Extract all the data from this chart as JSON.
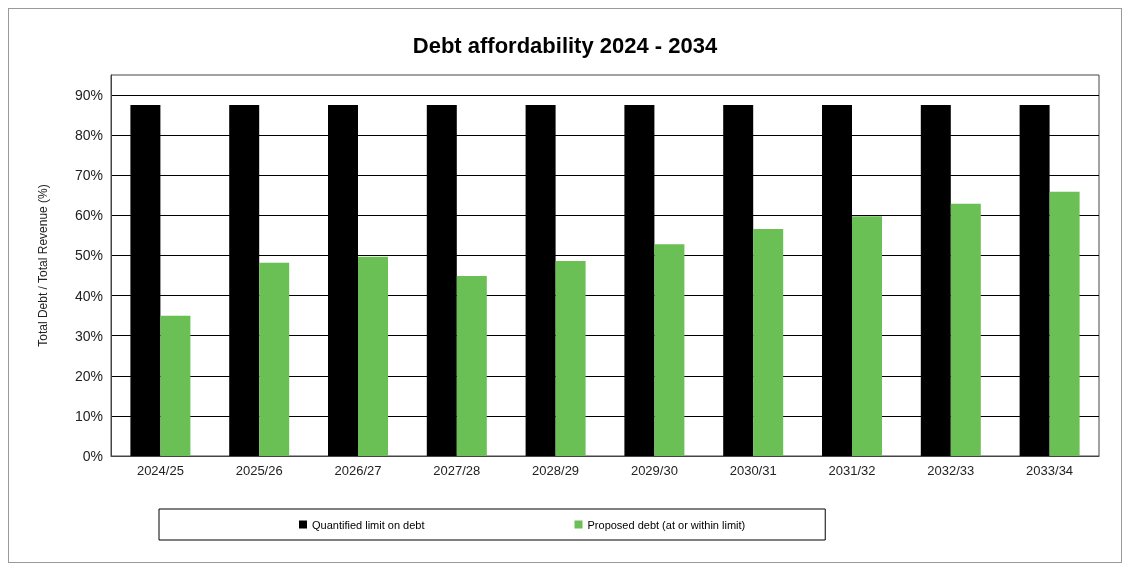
{
  "chart_data": {
    "type": "bar",
    "title": "Debt affordability 2024 - 2034",
    "ylabel": "Total Debt / Total Revenue (%)",
    "categories": [
      "2024/25",
      "2025/26",
      "2026/27",
      "2027/28",
      "2028/29",
      "2029/30",
      "2030/31",
      "2031/32",
      "2032/33",
      "2033/34"
    ],
    "series": [
      {
        "name": "Quantified limit on debt",
        "color": "#000000",
        "values": [
          87.5,
          87.5,
          87.5,
          87.5,
          87.5,
          87.5,
          87.5,
          87.5,
          87.5,
          87.5
        ]
      },
      {
        "name": "Proposed debt (at or within limit)",
        "color": "#6abf55",
        "values": [
          35,
          48.2,
          49.7,
          44.9,
          48.6,
          52.8,
          56.6,
          59.8,
          62.9,
          65.9
        ]
      }
    ],
    "ylim": [
      0,
      95
    ],
    "yticks": [
      {
        "value": 0,
        "label": "0%"
      },
      {
        "value": 10,
        "label": "10%"
      },
      {
        "value": 20,
        "label": "20%"
      },
      {
        "value": 30,
        "label": "30%"
      },
      {
        "value": 40,
        "label": "40%"
      },
      {
        "value": 50,
        "label": "50%"
      },
      {
        "value": 60,
        "label": "60%"
      },
      {
        "value": 70,
        "label": "70%"
      },
      {
        "value": 80,
        "label": "80%"
      },
      {
        "value": 90,
        "label": "90%"
      }
    ],
    "grid": "y",
    "legend": "bottom"
  }
}
